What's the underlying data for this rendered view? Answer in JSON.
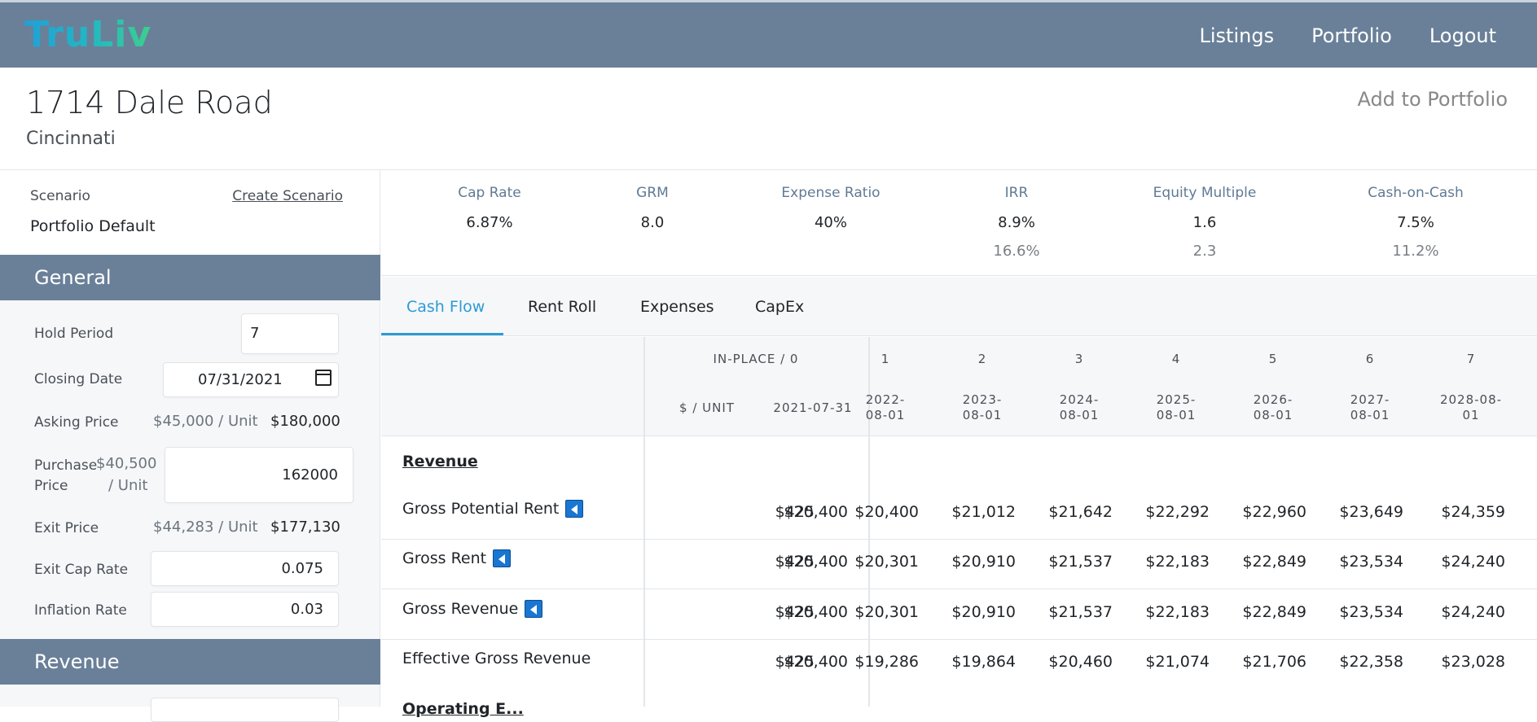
{
  "nav": {
    "logo": "TruLiv",
    "links": [
      "Listings",
      "Portfolio",
      "Logout"
    ]
  },
  "property": {
    "address": "1714 Dale Road",
    "city": "Cincinnati",
    "add_to_portfolio": "Add to Portfolio"
  },
  "scenario": {
    "label": "Scenario",
    "create_link": "Create Scenario",
    "value": "Portfolio Default"
  },
  "general": {
    "title": "General",
    "hold_period_label": "Hold Period",
    "hold_period_value": "7",
    "closing_date_label": "Closing Date",
    "closing_date_value": "07/31/2021",
    "asking_price_label": "Asking Price",
    "asking_price_per_unit": "$45,000 / Unit",
    "asking_price_value": "$180,000",
    "purchase_price_label_1": "Purchase",
    "purchase_price_label_2": "Price",
    "purchase_price_per_unit_1": "$40,500",
    "purchase_price_per_unit_2": "/ Unit",
    "purchase_price_value": "162000",
    "exit_price_label": "Exit Price",
    "exit_price_per_unit": "$44,283 / Unit",
    "exit_price_value": "$177,130",
    "exit_cap_rate_label": "Exit Cap Rate",
    "exit_cap_rate_value": "0.075",
    "inflation_rate_label": "Inflation Rate",
    "inflation_rate_value": "0.03"
  },
  "revenue_section": {
    "title": "Revenue"
  },
  "metrics": [
    {
      "label": "Cap Rate",
      "value": "6.87%",
      "value2": ""
    },
    {
      "label": "GRM",
      "value": "8.0",
      "value2": ""
    },
    {
      "label": "Expense Ratio",
      "value": "40%",
      "value2": ""
    },
    {
      "label": "IRR",
      "value": "8.9%",
      "value2": "16.6%"
    },
    {
      "label": "Equity Multiple",
      "value": "1.6",
      "value2": "2.3"
    },
    {
      "label": "Cash-on-Cash",
      "value": "7.5%",
      "value2": "11.2%"
    }
  ],
  "tabs": [
    "Cash Flow",
    "Rent Roll",
    "Expenses",
    "CapEx"
  ],
  "table": {
    "inplace_header": "IN-PLACE / 0",
    "per_unit_header": "$ / UNIT",
    "inplace_date": "2021-07-31",
    "years": [
      "1",
      "2",
      "3",
      "4",
      "5",
      "6",
      "7"
    ],
    "year_dates_1": [
      "2022-",
      "2023-",
      "2024-",
      "2025-",
      "2026-",
      "2027-",
      "2028-08-"
    ],
    "year_dates_2": [
      "08-01",
      "08-01",
      "08-01",
      "08-01",
      "08-01",
      "08-01",
      "01"
    ],
    "section_label": "Revenue",
    "partial_label": "Operating E...",
    "rows": [
      {
        "label": "Gross Potential Rent",
        "per_unit": "$425",
        "inplace": "$20,400",
        "values": [
          "$20,400",
          "$21,012",
          "$21,642",
          "$22,292",
          "$22,960",
          "$23,649",
          "$24,359"
        ]
      },
      {
        "label": "Gross Rent",
        "per_unit": "$425",
        "inplace": "$20,400",
        "values": [
          "$20,301",
          "$20,910",
          "$21,537",
          "$22,183",
          "$22,849",
          "$23,534",
          "$24,240"
        ]
      },
      {
        "label": "Gross Revenue",
        "per_unit": "$425",
        "inplace": "$20,400",
        "values": [
          "$20,301",
          "$20,910",
          "$21,537",
          "$22,183",
          "$22,849",
          "$23,534",
          "$24,240"
        ]
      },
      {
        "label": "Effective Gross Revenue",
        "per_unit": "$425",
        "inplace": "$20,400",
        "values": [
          "$19,286",
          "$19,864",
          "$20,460",
          "$21,074",
          "$21,706",
          "$22,358",
          "$23,028"
        ]
      }
    ]
  },
  "colors": {
    "nav_bg": "#6a8099",
    "accent": "#2c9bd6",
    "collapse_button": "#1976d2"
  }
}
